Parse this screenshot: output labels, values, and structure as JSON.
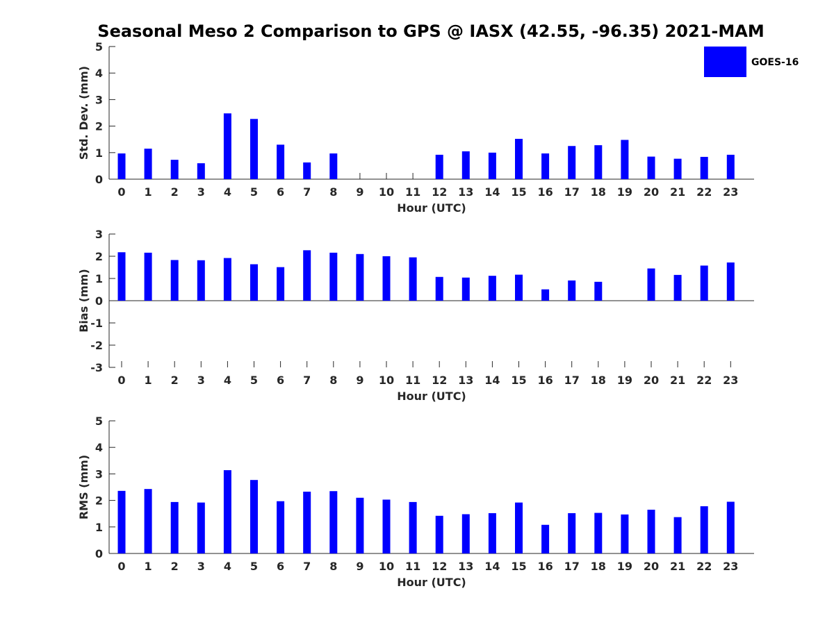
{
  "title": "Seasonal Meso 2 Comparison to GPS @ IASX (42.55, -96.35) 2021-MAM",
  "colors": {
    "bar": "#0000ff",
    "axis": "#262626"
  },
  "chart_data": [
    {
      "type": "bar",
      "title": "Seasonal Meso 2 Comparison to GPS @ IASX (42.55, -96.35) 2021-MAM",
      "xlabel": "Hour (UTC)",
      "ylabel": "Std. Dev. (mm)",
      "categories": [
        "0",
        "1",
        "2",
        "3",
        "4",
        "5",
        "6",
        "7",
        "8",
        "9",
        "10",
        "11",
        "12",
        "13",
        "14",
        "15",
        "16",
        "17",
        "18",
        "19",
        "20",
        "21",
        "22",
        "23"
      ],
      "ylim": [
        0,
        5
      ],
      "yticks": [
        "0",
        "1",
        "2",
        "3",
        "4",
        "5"
      ],
      "legend": {
        "entries": [
          "GOES-16"
        ],
        "placement": "top-right"
      },
      "series": [
        {
          "name": "GOES-16",
          "values": [
            0.97,
            1.15,
            0.73,
            0.6,
            2.48,
            2.27,
            1.3,
            0.63,
            0.97,
            0,
            0,
            0,
            0.92,
            1.05,
            1.0,
            1.52,
            0.97,
            1.25,
            1.28,
            1.48,
            0.85,
            0.77,
            0.84,
            0.92
          ]
        }
      ]
    },
    {
      "type": "bar",
      "xlabel": "Hour (UTC)",
      "ylabel": "Bias (mm)",
      "categories": [
        "0",
        "1",
        "2",
        "3",
        "4",
        "5",
        "6",
        "7",
        "8",
        "9",
        "10",
        "11",
        "12",
        "13",
        "14",
        "15",
        "16",
        "17",
        "18",
        "19",
        "20",
        "21",
        "22",
        "23"
      ],
      "ylim": [
        -3,
        3
      ],
      "yticks": [
        "-3",
        "-2",
        "-1",
        "0",
        "1",
        "2",
        "3"
      ],
      "series": [
        {
          "name": "GOES-16",
          "values": [
            2.18,
            2.16,
            1.83,
            1.82,
            1.92,
            1.64,
            1.51,
            2.27,
            2.16,
            2.1,
            2.0,
            1.95,
            1.07,
            1.04,
            1.12,
            1.17,
            0.51,
            0.91,
            0.85,
            0,
            1.45,
            1.16,
            1.58,
            1.72
          ]
        }
      ]
    },
    {
      "type": "bar",
      "xlabel": "Hour (UTC)",
      "ylabel": "RMS (mm)",
      "categories": [
        "0",
        "1",
        "2",
        "3",
        "4",
        "5",
        "6",
        "7",
        "8",
        "9",
        "10",
        "11",
        "12",
        "13",
        "14",
        "15",
        "16",
        "17",
        "18",
        "19",
        "20",
        "21",
        "22",
        "23"
      ],
      "ylim": [
        0,
        5
      ],
      "yticks": [
        "0",
        "1",
        "2",
        "3",
        "4",
        "5"
      ],
      "series": [
        {
          "name": "GOES-16",
          "values": [
            2.36,
            2.43,
            1.94,
            1.92,
            3.14,
            2.77,
            1.97,
            2.33,
            2.35,
            2.1,
            2.03,
            1.94,
            1.42,
            1.48,
            1.52,
            1.92,
            1.08,
            1.52,
            1.53,
            1.47,
            1.65,
            1.37,
            1.78,
            1.95
          ]
        }
      ]
    }
  ]
}
